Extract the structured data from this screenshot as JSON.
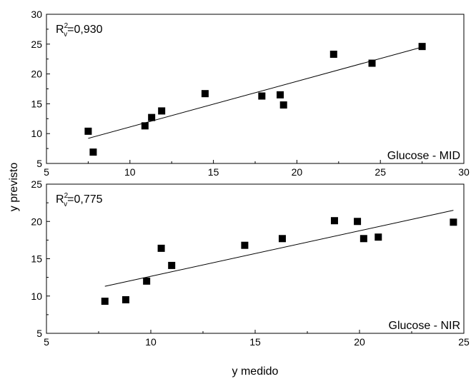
{
  "chart_data": [
    {
      "type": "scatter",
      "xlim": [
        5,
        30
      ],
      "ylim": [
        5,
        30
      ],
      "xticks": [
        "5",
        "10",
        "15",
        "20",
        "25",
        "30"
      ],
      "yticks": [
        "5",
        "10",
        "15",
        "20",
        "25",
        "30"
      ],
      "annotation": {
        "prefix": "R",
        "sup": "2",
        "sub": "v",
        "value": "=0,930"
      },
      "panel_label": "Glucose - MID",
      "points": {
        "x": [
          7.5,
          7.8,
          10.9,
          11.3,
          11.9,
          14.5,
          17.9,
          19.0,
          19.2,
          22.2,
          24.5,
          27.5
        ],
        "y": [
          10.4,
          6.9,
          11.3,
          12.7,
          13.8,
          16.7,
          16.3,
          16.5,
          14.8,
          23.3,
          21.8,
          24.6
        ]
      },
      "fit": {
        "x": [
          7.5,
          27.5
        ],
        "y": [
          9.2,
          24.5
        ]
      }
    },
    {
      "type": "scatter",
      "xlim": [
        5,
        25
      ],
      "ylim": [
        5,
        25
      ],
      "xticks": [
        "5",
        "10",
        "15",
        "20",
        "25"
      ],
      "yticks": [
        "5",
        "10",
        "15",
        "20",
        "25"
      ],
      "annotation": {
        "prefix": "R",
        "sup": "2",
        "sub": "v",
        "value": "=0,775"
      },
      "panel_label": "Glucose - NIR",
      "points": {
        "x": [
          7.8,
          8.8,
          9.8,
          10.5,
          11.0,
          14.5,
          16.3,
          18.8,
          19.9,
          20.2,
          20.9,
          24.5
        ],
        "y": [
          9.3,
          9.5,
          12.0,
          16.4,
          14.1,
          16.8,
          17.7,
          20.1,
          20.0,
          17.7,
          17.9,
          19.9
        ]
      },
      "fit": {
        "x": [
          7.8,
          24.5
        ],
        "y": [
          11.3,
          21.5
        ]
      }
    }
  ],
  "ylabel": "y previsto",
  "xlabel": "y medido",
  "series_color": "#000000"
}
